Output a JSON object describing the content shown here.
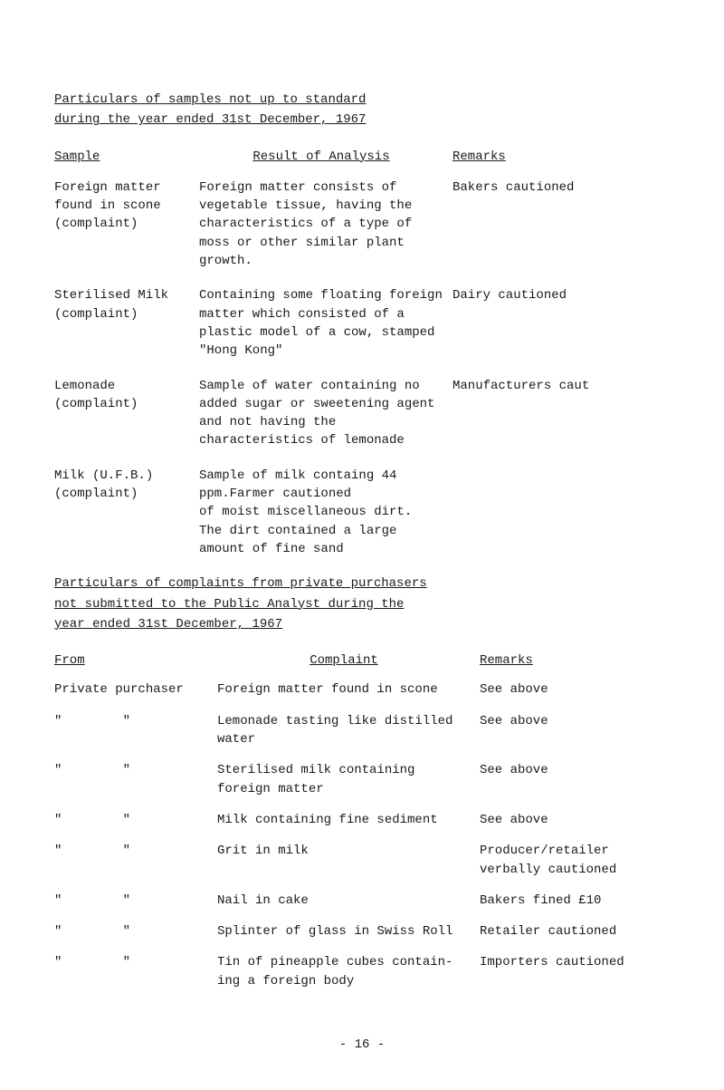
{
  "title1_line1": "Particulars of samples not up to standard",
  "title1_line2": "during the year ended 31st December, 1967",
  "table1": {
    "headers": {
      "sample": "Sample",
      "result": "Result of Analysis",
      "remarks": "Remarks"
    },
    "rows": [
      {
        "sample": "Foreign matter found in scone (complaint)",
        "result": "Foreign matter consists of vegetable tissue, having the characteristics of a type of moss or other similar plant growth.",
        "remarks": "Bakers cautioned"
      },
      {
        "sample": "Sterilised Milk (complaint)",
        "result": "Containing some floating foreign matter which consisted of a plastic model of a cow, stamped \"Hong Kong\"",
        "remarks": "Dairy cautioned"
      },
      {
        "sample": "Lemonade (complaint)",
        "result": "Sample of water containing no added sugar or sweetening agent and not having the characteristics of lemonade",
        "remarks": "Manufacturers caut"
      },
      {
        "sample": "Milk (U.F.B.) (complaint)",
        "result": "Sample of milk containg 44 ppm.Farmer cautioned of moist miscellaneous dirt. The dirt contained a large amount of fine sand",
        "remarks": ""
      }
    ],
    "row4_sample": "Milk (U.F.B.) (complaint)",
    "row4_result_l1": "Sample of milk containg 44 ppm.",
    "row4_result_l2": "of moist miscellaneous dirt.",
    "row4_result_l3": "The dirt contained a large",
    "row4_result_l4": "amount of fine sand",
    "row4_remarks": "Farmer cautioned"
  },
  "title2_line1": "Particulars of complaints from private purchasers",
  "title2_line2": "not submitted to the Public Analyst during the",
  "title2_line3": "year ended 31st December, 1967",
  "table2": {
    "headers": {
      "from": "From",
      "complaint": "Complaint",
      "remarks": "Remarks"
    },
    "rows": [
      {
        "from": "Private purchaser",
        "complaint": "Foreign matter found in scone",
        "remarks": "See above"
      },
      {
        "from": "\"        \"",
        "complaint": "Lemonade tasting like distilled water",
        "remarks": "See above"
      },
      {
        "from": "\"        \"",
        "complaint": "Sterilised milk containing foreign matter",
        "remarks": "See above"
      },
      {
        "from": "\"        \"",
        "complaint": "Milk containing fine sediment",
        "remarks": "See above"
      },
      {
        "from": "\"        \"",
        "complaint": "Grit in milk",
        "remarks": "Producer/retailer verbally cautioned"
      },
      {
        "from": "\"        \"",
        "complaint": "Nail in cake",
        "remarks": "Bakers fined £10"
      },
      {
        "from": "\"        \"",
        "complaint": "Splinter of glass in Swiss Roll",
        "remarks": "Retailer cautioned"
      },
      {
        "from": "\"        \"",
        "complaint": "Tin of pineapple cubes contain- ing a foreign body",
        "remarks": "Importers cautioned"
      }
    ]
  },
  "page_number": "- 16 -"
}
